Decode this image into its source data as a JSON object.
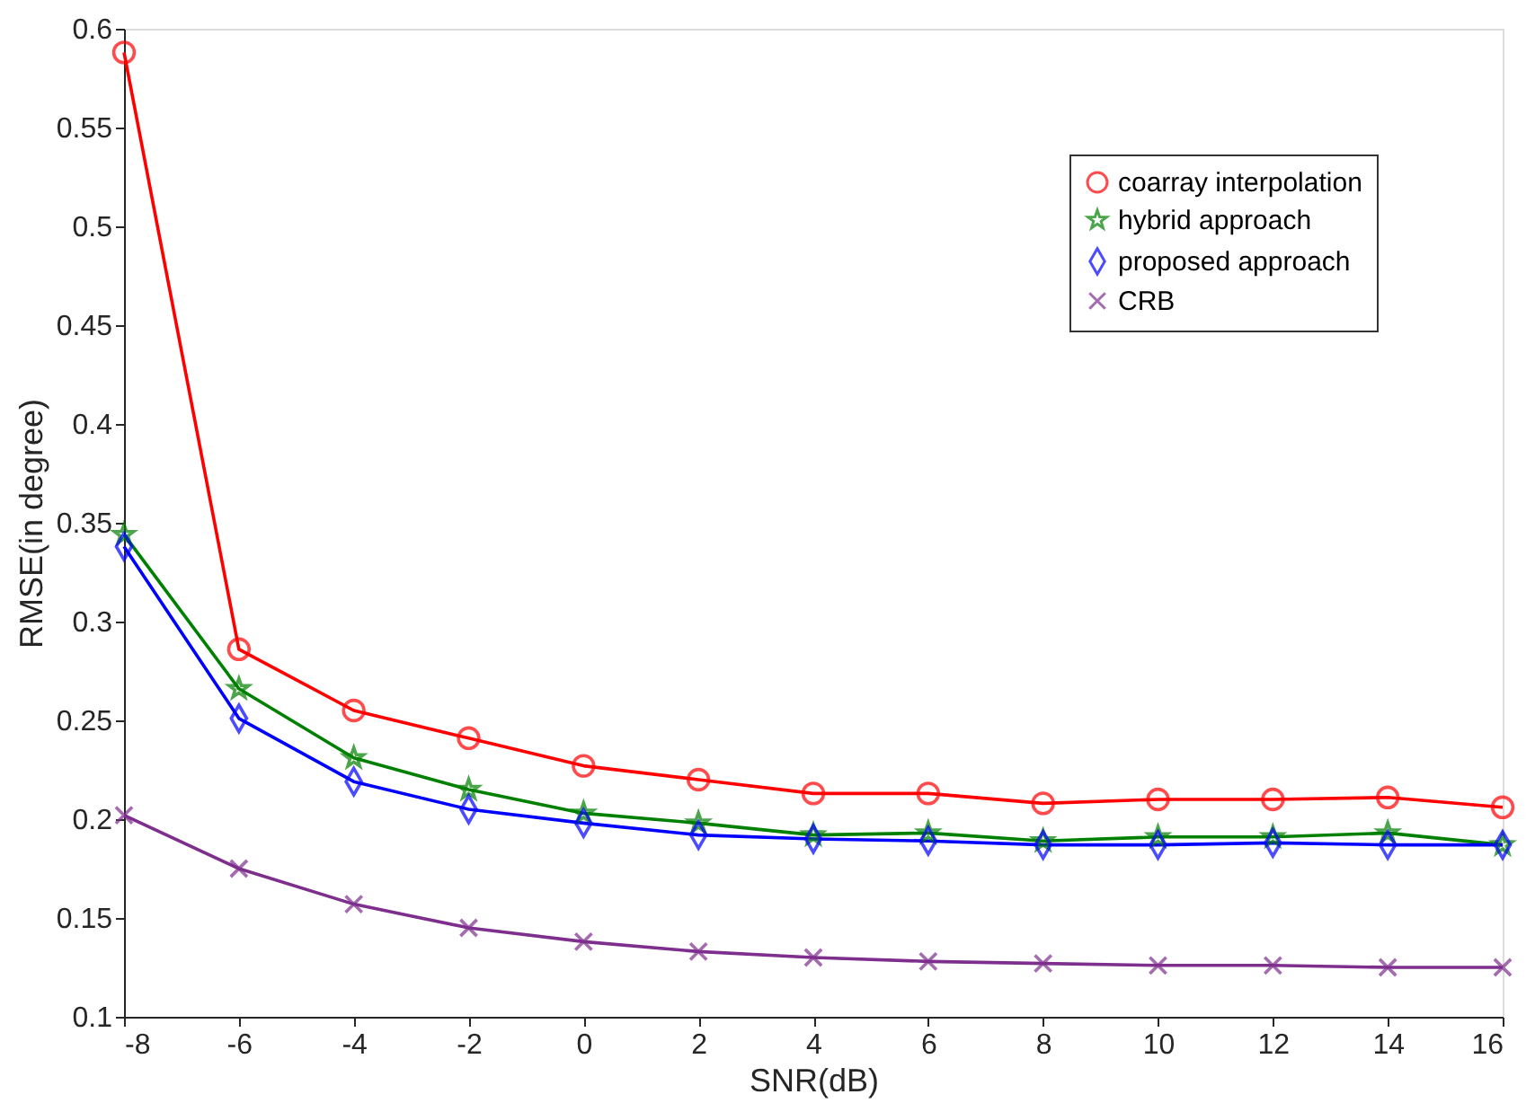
{
  "chart_data": {
    "type": "line",
    "xlabel": "SNR(dB)",
    "ylabel": "RMSE(in degree)",
    "x": [
      -8,
      -6,
      -4,
      -2,
      0,
      2,
      4,
      6,
      8,
      10,
      12,
      14,
      16
    ],
    "xlim": [
      -8,
      16
    ],
    "xticks": [
      -8,
      -6,
      -4,
      -2,
      0,
      2,
      4,
      6,
      8,
      10,
      12,
      14,
      16
    ],
    "ylim": [
      0.1,
      0.6
    ],
    "yticks": [
      0.1,
      0.15,
      0.2,
      0.25,
      0.3,
      0.35,
      0.4,
      0.45,
      0.5,
      0.55,
      0.6
    ],
    "grid": false,
    "legend": "top right",
    "line_style": "solid",
    "series": [
      {
        "name": "coarray interpolation",
        "color": "#ff0000",
        "marker": "circle",
        "values": [
          0.588,
          0.286,
          0.255,
          0.241,
          0.227,
          0.22,
          0.213,
          0.213,
          0.208,
          0.21,
          0.21,
          0.211,
          0.206
        ]
      },
      {
        "name": "hybrid approach",
        "color": "#008000",
        "marker": "star",
        "values": [
          0.344,
          0.266,
          0.231,
          0.215,
          0.203,
          0.198,
          0.192,
          0.193,
          0.189,
          0.191,
          0.191,
          0.193,
          0.187
        ]
      },
      {
        "name": "proposed approach",
        "color": "#0000ff",
        "marker": "diamond",
        "values": [
          0.338,
          0.251,
          0.219,
          0.205,
          0.198,
          0.192,
          0.19,
          0.189,
          0.187,
          0.187,
          0.188,
          0.187,
          0.187
        ]
      },
      {
        "name": "CRB",
        "color": "#7e2f8e",
        "marker": "cross",
        "values": [
          0.202,
          0.175,
          0.157,
          0.145,
          0.138,
          0.133,
          0.13,
          0.128,
          0.127,
          0.126,
          0.126,
          0.125,
          0.125
        ]
      }
    ]
  }
}
